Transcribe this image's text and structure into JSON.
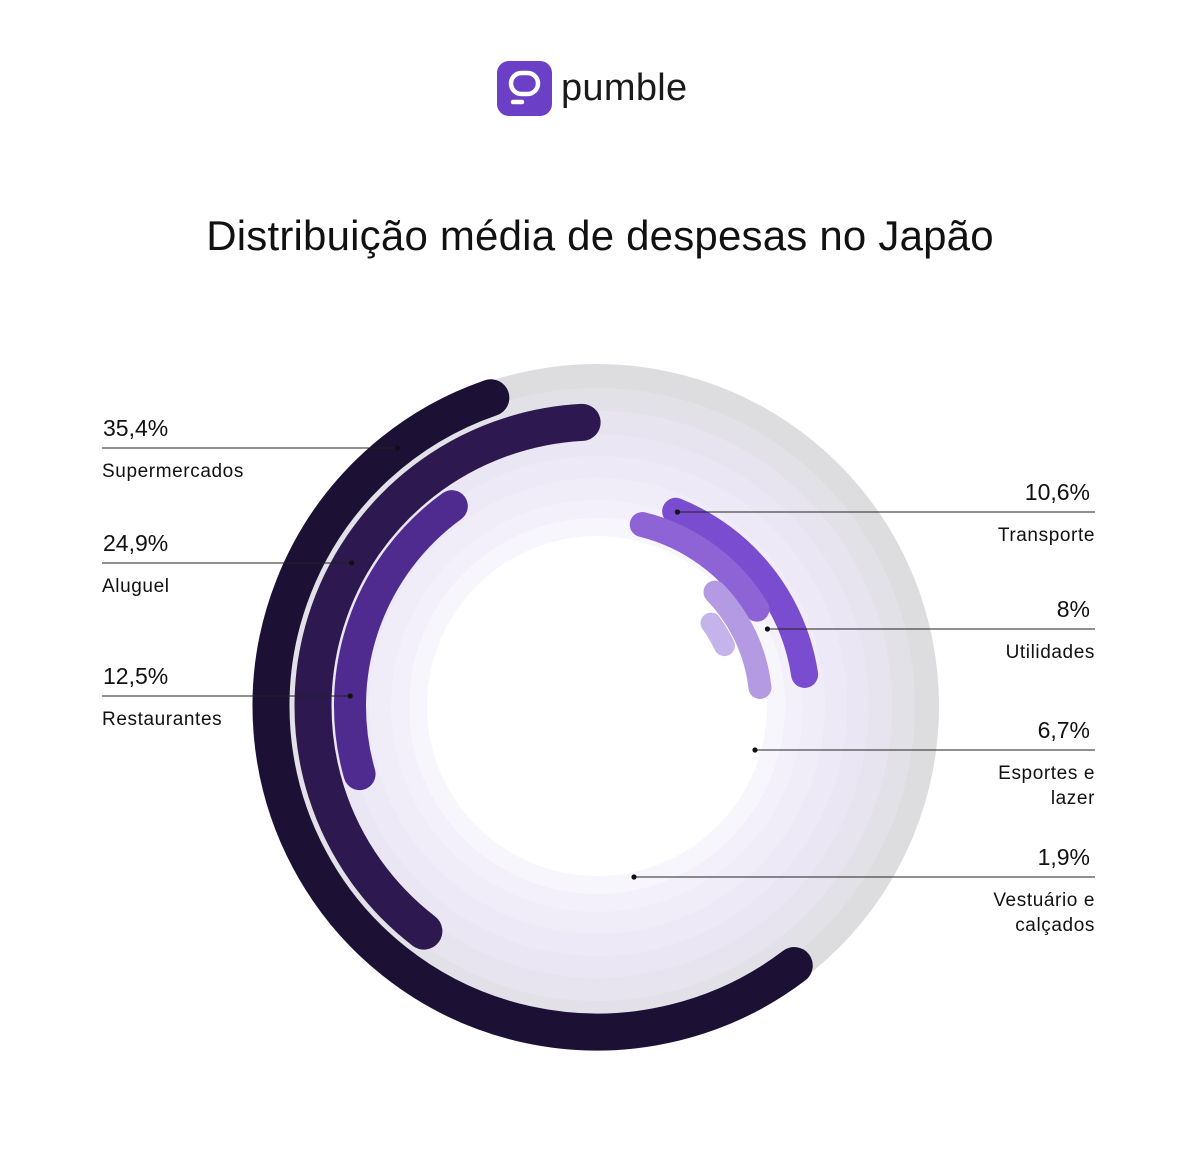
{
  "brand": {
    "name": "pumble",
    "color": "#6b3fc6"
  },
  "chart_data": {
    "type": "radial-bar",
    "title": "Distribuição média de despesas no Japão",
    "unit": "%",
    "series": [
      {
        "label": "Supermercados",
        "value": 35.4,
        "display": "35,4%",
        "color": "#1c1035",
        "side": "left"
      },
      {
        "label": "Aluguel",
        "value": 24.9,
        "display": "24,9%",
        "color": "#2e1850",
        "side": "left"
      },
      {
        "label": "Restaurantes",
        "value": 12.5,
        "display": "12,5%",
        "color": "#4f2b8f",
        "side": "left"
      },
      {
        "label": "Transporte",
        "value": 10.6,
        "display": "10,6%",
        "color": "#7a4cd0",
        "side": "right"
      },
      {
        "label": "Utilidades",
        "value": 8,
        "display": "8%",
        "color": "#8e63d6",
        "side": "right"
      },
      {
        "label": "Esportes e lazer",
        "value": 6.7,
        "display": "6,7%",
        "color": "#b39ae3",
        "side": "right"
      },
      {
        "label": "Vestuário e calçados",
        "value": 1.9,
        "display": "1,9%",
        "color": "#c5b3ec",
        "side": "right"
      }
    ]
  }
}
